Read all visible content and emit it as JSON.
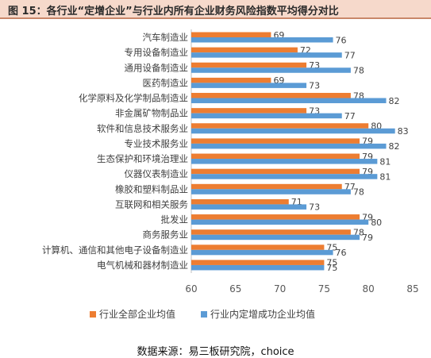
{
  "header": {
    "title": "图 15：各行业“定增企业”与行业内所有企业财务风险指数平均得分对比"
  },
  "footer": {
    "source": "数据来源：易三板研究院，choice"
  },
  "chart_data": {
    "type": "bar",
    "orientation": "horizontal",
    "title": "图 15：各行业“定增企业”与行业内所有企业财务风险指数平均得分对比",
    "xlim": [
      60,
      85
    ],
    "x_ticks": [
      60,
      65,
      70,
      75,
      80,
      85
    ],
    "grid": false,
    "legend_position": "bottom",
    "categories": [
      "汽车制造业",
      "专用设备制造业",
      "通用设备制造业",
      "医药制造业",
      "化学原料及化学制品制造业",
      "非金属矿物制品业",
      "软件和信息技术服务业",
      "专业技术服务业",
      "生态保护和环境治理业",
      "仪器仪表制造业",
      "橡胶和塑料制品业",
      "互联网和相关服务",
      "批发业",
      "商务服务业",
      "计算机、通信和其他电子设备制造业",
      "电气机械和器材制造业"
    ],
    "series": [
      {
        "name": "行业全部企业均值",
        "color": "#ed7d31",
        "values": [
          69,
          72,
          73,
          69,
          78,
          73,
          80,
          79,
          79,
          79,
          77,
          71,
          79,
          78,
          75,
          75
        ]
      },
      {
        "name": "行业内定增成功企业均值",
        "color": "#5b9bd5",
        "values": [
          76,
          77,
          78,
          73,
          82,
          77,
          83,
          82,
          81,
          81,
          78,
          73,
          80,
          79,
          76,
          75
        ]
      }
    ]
  }
}
